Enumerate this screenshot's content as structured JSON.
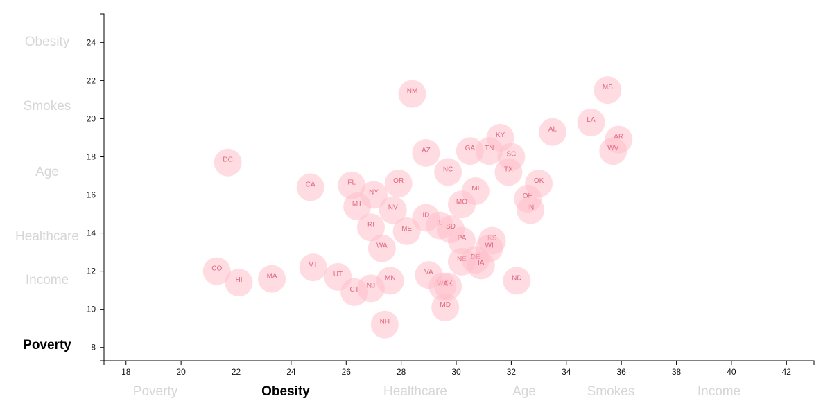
{
  "x_axis_options": [
    {
      "key": "poverty",
      "label": "Poverty",
      "active": false
    },
    {
      "key": "obesity",
      "label": "Obesity",
      "active": true
    },
    {
      "key": "healthcare",
      "label": "Healthcare",
      "active": false
    },
    {
      "key": "age",
      "label": "Age",
      "active": false
    },
    {
      "key": "smokes",
      "label": "Smokes",
      "active": false
    },
    {
      "key": "income",
      "label": "Income",
      "active": false
    }
  ],
  "y_axis_options": [
    {
      "key": "obesity",
      "label": "Obesity",
      "active": false
    },
    {
      "key": "smokes",
      "label": "Smokes",
      "active": false
    },
    {
      "key": "age",
      "label": "Age",
      "active": false
    },
    {
      "key": "healthcare",
      "label": "Healthcare",
      "active": false
    },
    {
      "key": "income",
      "label": "Income",
      "active": false
    },
    {
      "key": "poverty",
      "label": "Poverty",
      "active": true
    }
  ],
  "colors": {
    "circle_fill": "#ffc0cb",
    "circle_label": "#e2657d",
    "active_axis_label": "#000000",
    "inactive_axis_label": "#d6d6d6"
  },
  "chart_data": {
    "type": "scatter",
    "xlabel": "Obesity",
    "ylabel": "Poverty",
    "xlim": [
      17.2,
      43.0
    ],
    "ylim": [
      7.3,
      25.5
    ],
    "x_ticks": [
      18,
      20,
      22,
      24,
      26,
      28,
      30,
      32,
      34,
      36,
      38,
      40,
      42
    ],
    "y_ticks": [
      8,
      10,
      12,
      14,
      16,
      18,
      20,
      22,
      24
    ],
    "grid": false,
    "points": [
      {
        "label": "MS",
        "x": 35.5,
        "y": 21.5
      },
      {
        "label": "NM",
        "x": 28.4,
        "y": 21.3
      },
      {
        "label": "LA",
        "x": 34.9,
        "y": 19.8
      },
      {
        "label": "AL",
        "x": 33.5,
        "y": 19.3
      },
      {
        "label": "KY",
        "x": 31.6,
        "y": 19.0
      },
      {
        "label": "AR",
        "x": 35.9,
        "y": 18.9
      },
      {
        "label": "WV",
        "x": 35.7,
        "y": 18.3
      },
      {
        "label": "AZ",
        "x": 28.9,
        "y": 18.2
      },
      {
        "label": "GA",
        "x": 30.5,
        "y": 18.3
      },
      {
        "label": "TN",
        "x": 31.2,
        "y": 18.3
      },
      {
        "label": "SC",
        "x": 32.0,
        "y": 18.0
      },
      {
        "label": "DC",
        "x": 21.7,
        "y": 17.7
      },
      {
        "label": "NC",
        "x": 29.7,
        "y": 17.2
      },
      {
        "label": "TX",
        "x": 31.9,
        "y": 17.2
      },
      {
        "label": "OK",
        "x": 33.0,
        "y": 16.6
      },
      {
        "label": "OR",
        "x": 27.9,
        "y": 16.6
      },
      {
        "label": "FL",
        "x": 26.2,
        "y": 16.5
      },
      {
        "label": "CA",
        "x": 24.7,
        "y": 16.4
      },
      {
        "label": "MI",
        "x": 30.7,
        "y": 16.2
      },
      {
        "label": "NY",
        "x": 27.0,
        "y": 16.0
      },
      {
        "label": "OH",
        "x": 32.6,
        "y": 15.8
      },
      {
        "label": "MO",
        "x": 30.2,
        "y": 15.5
      },
      {
        "label": "MT",
        "x": 26.4,
        "y": 15.4
      },
      {
        "label": "NV",
        "x": 27.7,
        "y": 15.2
      },
      {
        "label": "IN",
        "x": 32.7,
        "y": 15.2
      },
      {
        "label": "ID",
        "x": 28.9,
        "y": 14.8
      },
      {
        "label": "IL",
        "x": 29.4,
        "y": 14.4
      },
      {
        "label": "RI",
        "x": 26.9,
        "y": 14.3
      },
      {
        "label": "SD",
        "x": 29.8,
        "y": 14.2
      },
      {
        "label": "ME",
        "x": 28.2,
        "y": 14.1
      },
      {
        "label": "PA",
        "x": 30.2,
        "y": 13.6
      },
      {
        "label": "KS",
        "x": 31.3,
        "y": 13.6
      },
      {
        "label": "WI",
        "x": 31.2,
        "y": 13.2
      },
      {
        "label": "WA",
        "x": 27.3,
        "y": 13.2
      },
      {
        "label": "NE",
        "x": 30.2,
        "y": 12.5
      },
      {
        "label": "DE",
        "x": 30.7,
        "y": 12.6
      },
      {
        "label": "IA",
        "x": 30.9,
        "y": 12.3
      },
      {
        "label": "VT",
        "x": 24.8,
        "y": 12.2
      },
      {
        "label": "CO",
        "x": 21.3,
        "y": 12.0
      },
      {
        "label": "UT",
        "x": 25.7,
        "y": 11.7
      },
      {
        "label": "VA",
        "x": 29.0,
        "y": 11.8
      },
      {
        "label": "MN",
        "x": 27.6,
        "y": 11.5
      },
      {
        "label": "HI",
        "x": 22.1,
        "y": 11.4
      },
      {
        "label": "MA",
        "x": 23.3,
        "y": 11.6
      },
      {
        "label": "ND",
        "x": 32.2,
        "y": 11.5
      },
      {
        "label": "WY",
        "x": 29.5,
        "y": 11.2
      },
      {
        "label": "AK",
        "x": 29.7,
        "y": 11.2
      },
      {
        "label": "NJ",
        "x": 26.9,
        "y": 11.1
      },
      {
        "label": "CT",
        "x": 26.3,
        "y": 10.9
      },
      {
        "label": "MD",
        "x": 29.6,
        "y": 10.1
      },
      {
        "label": "NH",
        "x": 27.4,
        "y": 9.2
      }
    ]
  }
}
